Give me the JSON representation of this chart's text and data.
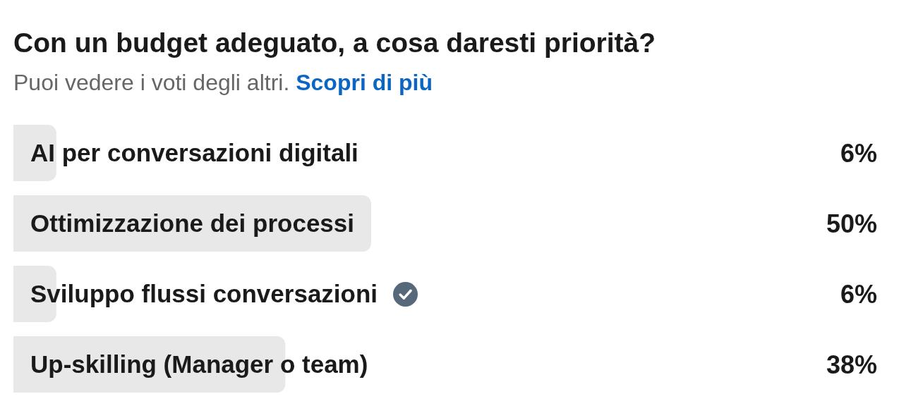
{
  "chart_data": {
    "type": "bar",
    "orientation": "horizontal",
    "title": "Con un budget adeguato, a cosa daresti priorità?",
    "subtitle": "Puoi vedere i voti degli altri.",
    "annotations": [
      "Scopri di più"
    ],
    "categories": [
      "AI per conversazioni digitali",
      "Ottimizzazione dei processi",
      "Sviluppo flussi conversazioni",
      "Up-skilling (Manager o team)"
    ],
    "values": [
      6,
      50,
      6,
      38
    ],
    "color": "#e8e8e8",
    "value_labels": [
      "6%",
      "50%",
      "6%",
      "38%"
    ],
    "tick_labels": "y"
  }
}
